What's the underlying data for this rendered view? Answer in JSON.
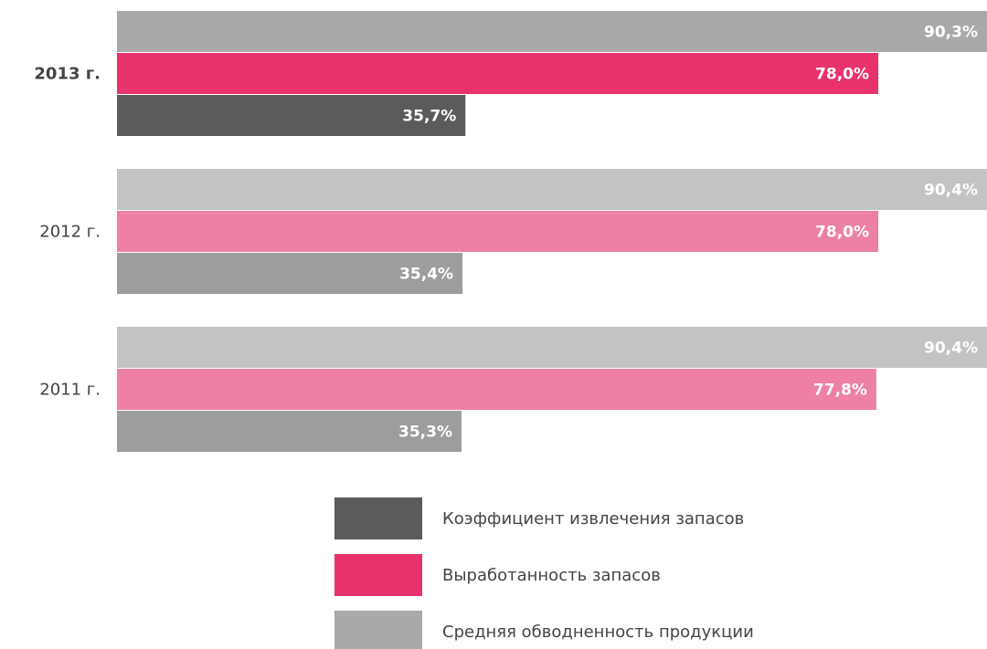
{
  "chart_data": {
    "type": "hbar",
    "categories": [
      "2013 г.",
      "2012 г.",
      "2011 г."
    ],
    "series": [
      {
        "name": "Коэффициент извлечения запасов",
        "color": "#5b5b5b",
        "colors": [
          "#5b5b5b",
          "#9d9d9d",
          "#9d9d9d"
        ],
        "values": [
          35.7,
          35.4,
          35.3
        ],
        "value_labels": [
          "35,7%",
          "35,4%",
          "35,3%"
        ]
      },
      {
        "name": "Выработанность запасов",
        "color": "#e8326c",
        "colors": [
          "#e8326c",
          "#ee80a4",
          "#ee80a4"
        ],
        "values": [
          78.0,
          78.0,
          77.8
        ],
        "value_labels": [
          "78,0%",
          "78,0%",
          "77,8%"
        ]
      },
      {
        "name": "Средняя обводненность продукции",
        "color": "#a9a9a9",
        "colors": [
          "#a9a9a9",
          "#c3c3c3",
          "#c3c3c3"
        ],
        "values": [
          90.3,
          90.4,
          90.4
        ],
        "value_labels": [
          "90,3%",
          "90,4%",
          "90,4%"
        ]
      }
    ]
  }
}
